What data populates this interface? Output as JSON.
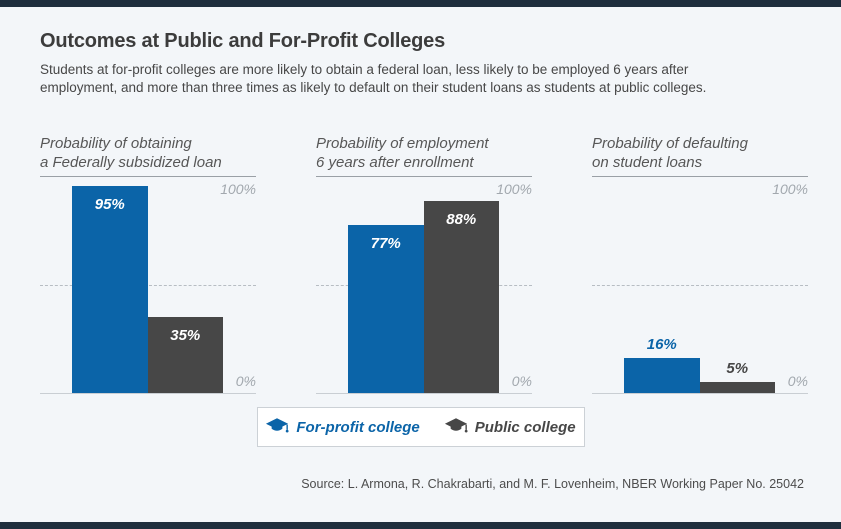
{
  "header": {
    "title": "Outcomes at Public and For-Profit Colleges",
    "subtitle": "Students at for-profit colleges are more likely to obtain a federal loan, less likely to be employed 6 years after employment, and more than three times as likely to default on their student loans as students at public colleges."
  },
  "chart_data": {
    "type": "bar",
    "unit": "percent",
    "ylim": [
      0,
      100
    ],
    "axis_labels": {
      "top": "100%",
      "bottom": "0%"
    },
    "dashed_gridline_at": 50,
    "series": [
      {
        "name": "For-profit college",
        "color": "#0b64a8"
      },
      {
        "name": "Public college",
        "color": "#474747"
      }
    ],
    "panels": [
      {
        "title": [
          "Probability of obtaining",
          "a Federally subsidized loan"
        ],
        "values": [
          95,
          35
        ]
      },
      {
        "title": [
          "Probability of employment",
          "6 years after enrollment"
        ],
        "values": [
          77,
          88
        ]
      },
      {
        "title": [
          "Probability of defaulting",
          "on student loans"
        ],
        "values": [
          16,
          5
        ]
      }
    ]
  },
  "legend": {
    "items": [
      {
        "label": "For-profit college",
        "icon": "graduation-cap-icon",
        "color": "#0b64a8"
      },
      {
        "label": "Public college",
        "icon": "graduation-cap-icon",
        "color": "#474747"
      }
    ]
  },
  "footer": {
    "source": "Source: L. Armona, R. Chakrabarti, and M. F. Lovenheim, NBER Working Paper No. 25042"
  },
  "colors": {
    "background": "#f3f6f9",
    "accent_bar": "#1e2e3d",
    "for_profit_blue": "#0b64a8",
    "public_gray": "#474747"
  }
}
